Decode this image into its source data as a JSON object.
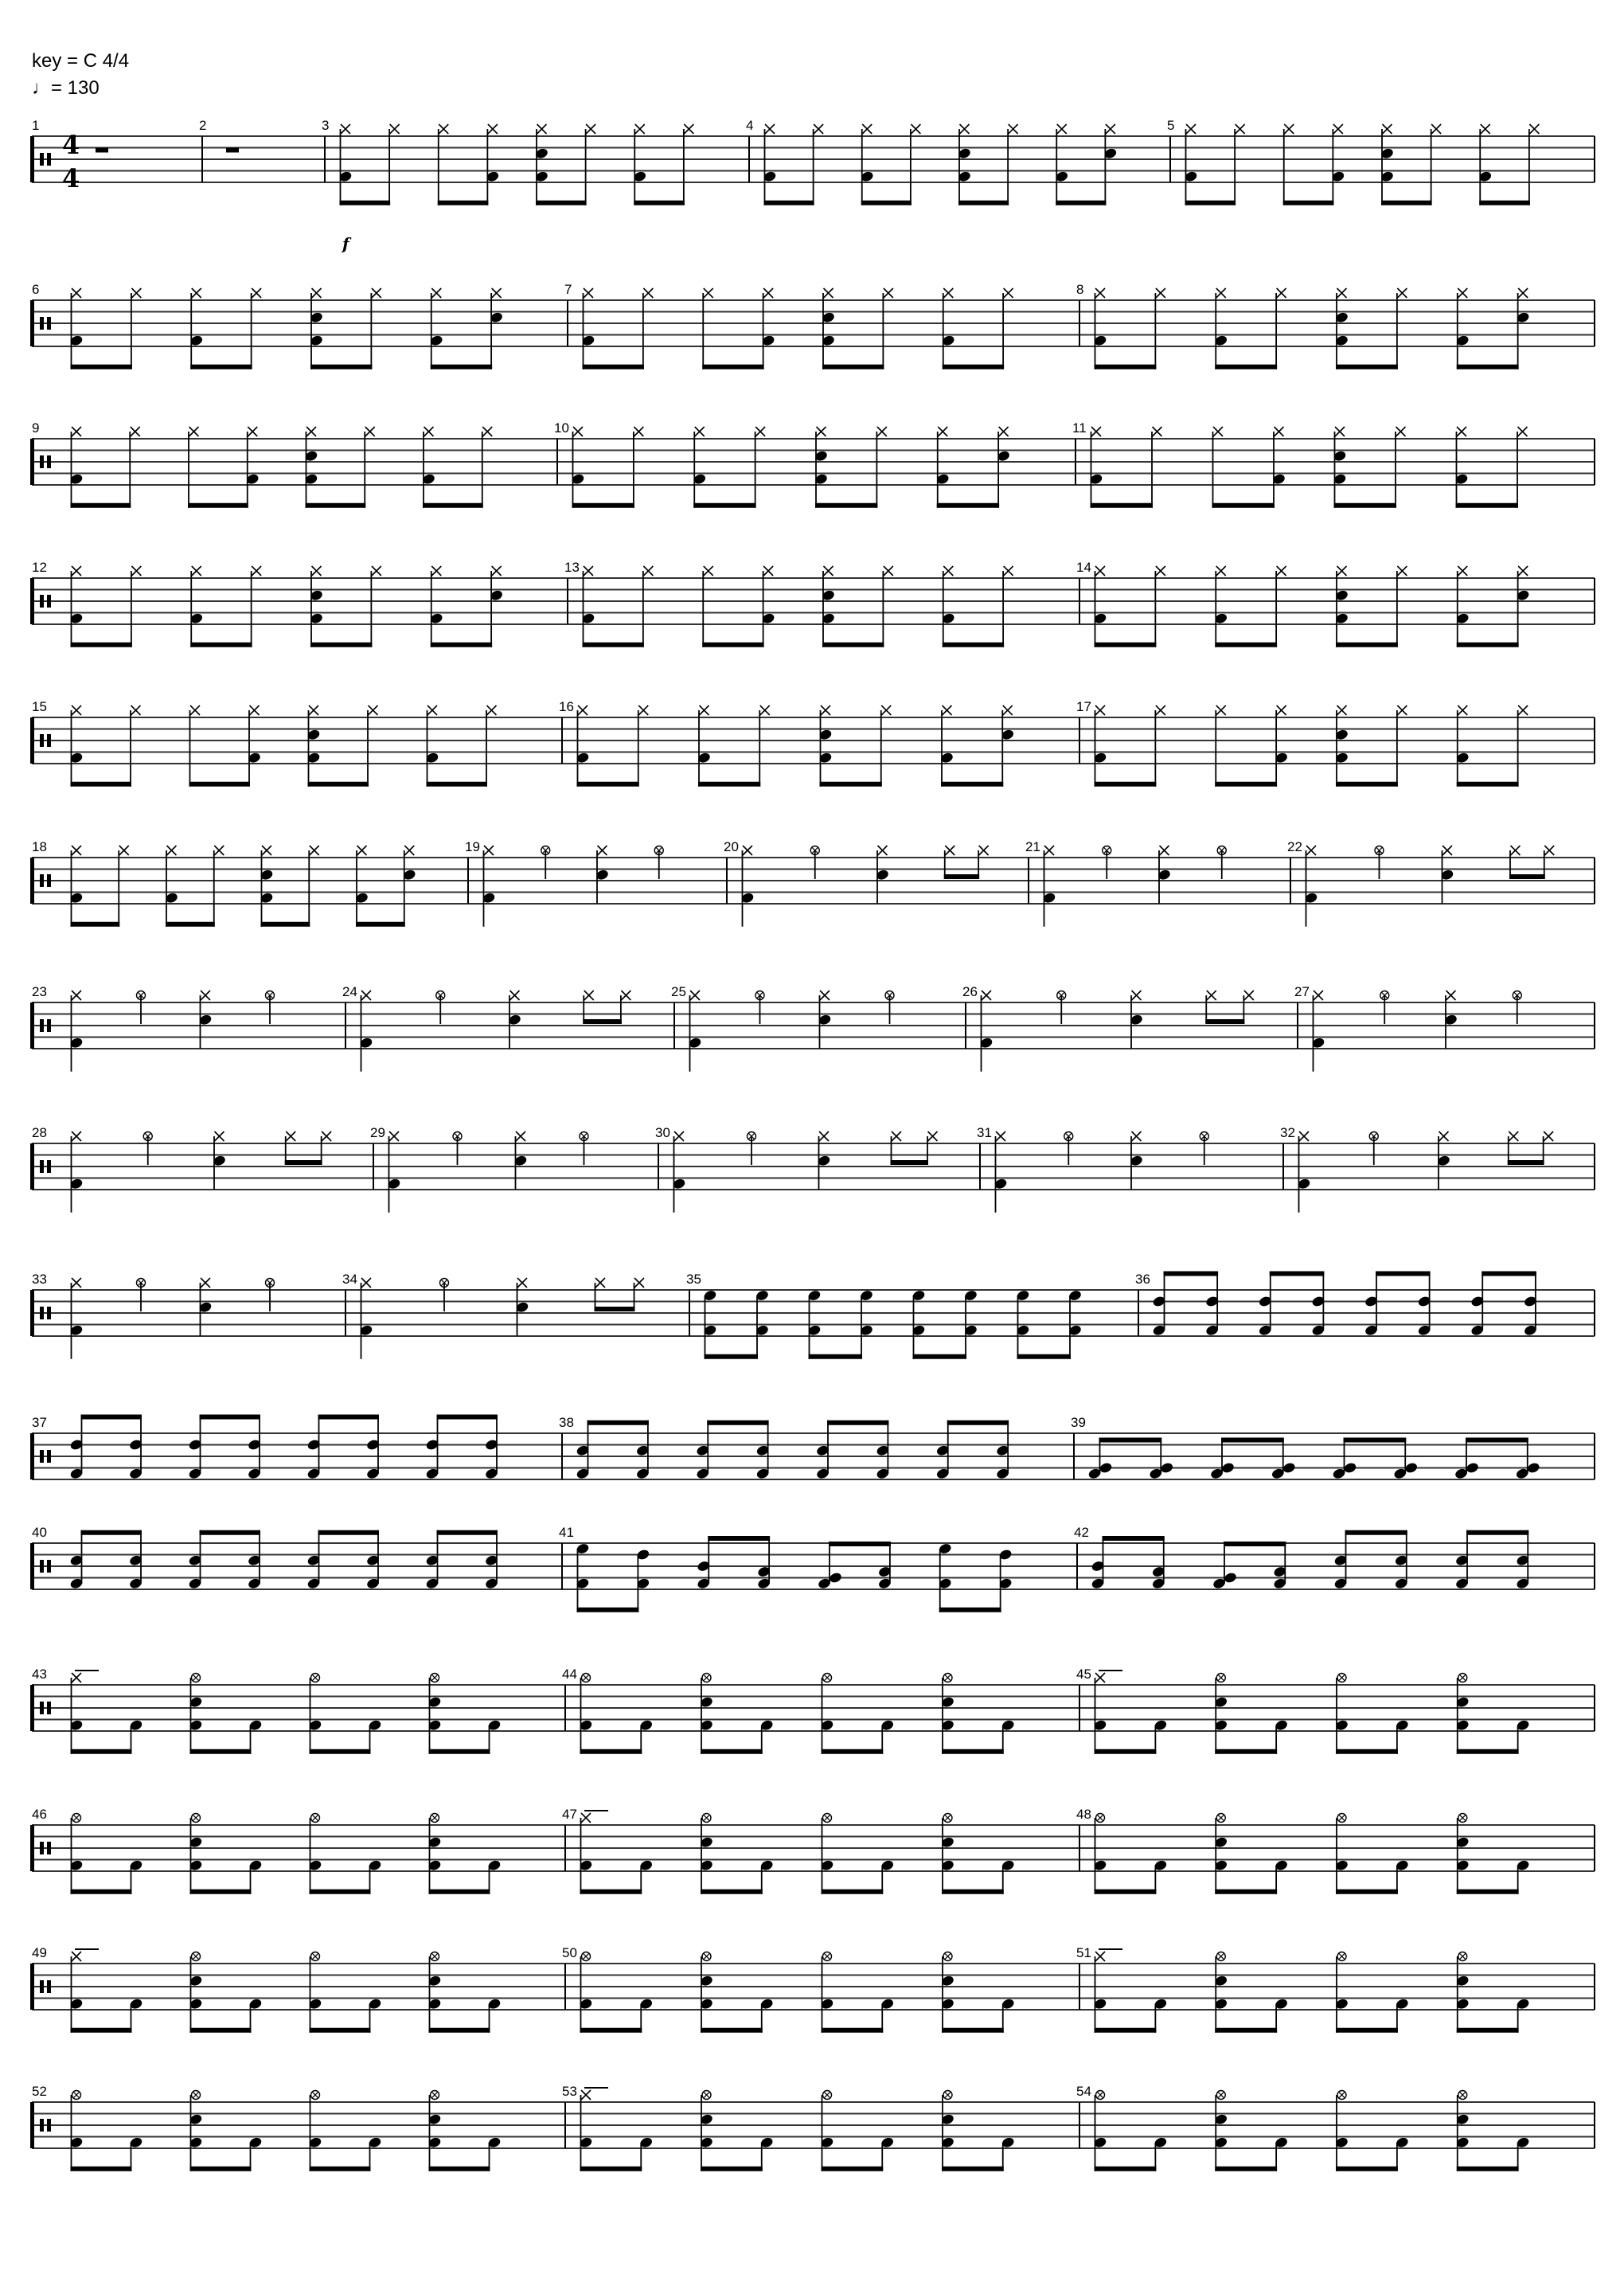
{
  "header": {
    "key_text": "key = C 4/4",
    "tempo_text": "♩= 130"
  },
  "time_signature": {
    "numerator": "4",
    "denominator": "4"
  },
  "dynamic": {
    "measure": 3,
    "text": "f"
  },
  "colors": {
    "ink": "#000000",
    "staff_line": "#333333",
    "background": "#ffffff"
  },
  "patterns": {
    "rest": {
      "rest": true
    },
    "A": {
      "dirs": [
        "down",
        "down",
        "down",
        "down"
      ],
      "events": [
        [
          "H",
          "K"
        ],
        [
          "H"
        ],
        [
          "H"
        ],
        [
          "H",
          "K"
        ],
        [
          "H",
          "S",
          "K"
        ],
        [
          "H"
        ],
        [
          "H",
          "K"
        ],
        [
          "H"
        ]
      ]
    },
    "B": {
      "dirs": [
        "down",
        "down",
        "down",
        "down"
      ],
      "events": [
        [
          "H",
          "K"
        ],
        [
          "H"
        ],
        [
          "H",
          "K"
        ],
        [
          "H"
        ],
        [
          "H",
          "S",
          "K"
        ],
        [
          "H"
        ],
        [
          "H",
          "K"
        ],
        [
          "H",
          "S"
        ]
      ]
    },
    "C": {
      "quarters": [
        0,
        2,
        4,
        6
      ],
      "events": [
        [
          "H",
          "K"
        ],
        null,
        [
          "C"
        ],
        null,
        [
          "H",
          "S"
        ],
        null,
        [
          "C"
        ],
        null
      ]
    },
    "D": {
      "quarters": [
        0,
        2,
        4
      ],
      "dirs": [
        null,
        null,
        null,
        "down"
      ],
      "events": [
        [
          "H",
          "K"
        ],
        null,
        [
          "C"
        ],
        null,
        [
          "H",
          "S"
        ],
        null,
        [
          "H"
        ],
        [
          "H"
        ]
      ]
    },
    "E": {
      "dirs": [
        "down",
        "down",
        "down",
        "down"
      ],
      "events": [
        [
          "T1",
          "K"
        ],
        [
          "T1",
          "K"
        ],
        [
          "T1",
          "K"
        ],
        [
          "T1",
          "K"
        ],
        [
          "T1",
          "K"
        ],
        [
          "T1",
          "K"
        ],
        [
          "T1",
          "K"
        ],
        [
          "T1",
          "K"
        ]
      ]
    },
    "F": {
      "dirs": [
        "up",
        "up",
        "up",
        "up"
      ],
      "events": [
        [
          "T2",
          "K"
        ],
        [
          "T2",
          "K"
        ],
        [
          "T2",
          "K"
        ],
        [
          "T2",
          "K"
        ],
        [
          "T2",
          "K"
        ],
        [
          "T2",
          "K"
        ],
        [
          "T2",
          "K"
        ],
        [
          "T2",
          "K"
        ]
      ]
    },
    "G": {
      "dirs": [
        "up",
        "up",
        "up",
        "up"
      ],
      "events": [
        [
          "S",
          "K"
        ],
        [
          "S",
          "K"
        ],
        [
          "S",
          "K"
        ],
        [
          "S",
          "K"
        ],
        [
          "S",
          "K"
        ],
        [
          "S",
          "K"
        ],
        [
          "S",
          "K"
        ],
        [
          "S",
          "K"
        ]
      ]
    },
    "H": {
      "dirs": [
        "up",
        "up",
        "up",
        "up"
      ],
      "events": [
        [
          "T3",
          "K"
        ],
        [
          "T3",
          "K"
        ],
        [
          "T3",
          "K"
        ],
        [
          "T3",
          "K"
        ],
        [
          "T3",
          "K"
        ],
        [
          "T3",
          "K"
        ],
        [
          "T3",
          "K"
        ],
        [
          "T3",
          "K"
        ]
      ]
    },
    "M41": {
      "dirs": [
        "down",
        "up",
        "up",
        "down"
      ],
      "events": [
        [
          "T1",
          "K"
        ],
        [
          "T2",
          "K"
        ],
        [
          "S2",
          "K"
        ],
        [
          "T4",
          "K"
        ],
        [
          "T3",
          "K"
        ],
        [
          "T4",
          "K"
        ],
        [
          "T1",
          "K"
        ],
        [
          "T2",
          "K"
        ]
      ]
    },
    "M42": {
      "dirs": [
        "up",
        "up",
        "up",
        "up"
      ],
      "events": [
        [
          "S2",
          "K"
        ],
        [
          "T4",
          "K"
        ],
        [
          "T3",
          "K"
        ],
        [
          "T4",
          "K"
        ],
        [
          "S",
          "K"
        ],
        [
          "S",
          "K"
        ],
        [
          "S",
          "K"
        ],
        [
          "S",
          "K"
        ]
      ]
    },
    "I": {
      "dirs": [
        "down",
        "down",
        "down",
        "down"
      ],
      "events": [
        [
          "CR",
          "K"
        ],
        [
          "K"
        ],
        [
          "C",
          "S",
          "K"
        ],
        [
          "K"
        ],
        [
          "C",
          "K"
        ],
        [
          "K"
        ],
        [
          "C",
          "S",
          "K"
        ],
        [
          "K"
        ]
      ]
    },
    "J": {
      "dirs": [
        "down",
        "down",
        "down",
        "down"
      ],
      "events": [
        [
          "C",
          "K"
        ],
        [
          "K"
        ],
        [
          "C",
          "S",
          "K"
        ],
        [
          "K"
        ],
        [
          "C",
          "K"
        ],
        [
          "K"
        ],
        [
          "C",
          "S",
          "K"
        ],
        [
          "K"
        ]
      ]
    }
  },
  "systems": [
    {
      "measures": [
        {
          "number": "1",
          "pattern": "rest"
        },
        {
          "number": "2",
          "pattern": "rest"
        },
        {
          "number": "3",
          "pattern": "A"
        },
        {
          "number": "4",
          "pattern": "B"
        },
        {
          "number": "5",
          "pattern": "A"
        }
      ]
    },
    {
      "measures": [
        {
          "number": "6",
          "pattern": "B"
        },
        {
          "number": "7",
          "pattern": "A"
        },
        {
          "number": "8",
          "pattern": "B"
        }
      ]
    },
    {
      "measures": [
        {
          "number": "9",
          "pattern": "A"
        },
        {
          "number": "10",
          "pattern": "B"
        },
        {
          "number": "11",
          "pattern": "A"
        }
      ]
    },
    {
      "measures": [
        {
          "number": "12",
          "pattern": "B"
        },
        {
          "number": "13",
          "pattern": "A"
        },
        {
          "number": "14",
          "pattern": "B"
        }
      ]
    },
    {
      "measures": [
        {
          "number": "15",
          "pattern": "A"
        },
        {
          "number": "16",
          "pattern": "B"
        },
        {
          "number": "17",
          "pattern": "A"
        }
      ]
    },
    {
      "measures": [
        {
          "number": "18",
          "pattern": "B"
        },
        {
          "number": "19",
          "pattern": "C"
        },
        {
          "number": "20",
          "pattern": "D"
        },
        {
          "number": "21",
          "pattern": "C"
        },
        {
          "number": "22",
          "pattern": "D"
        }
      ]
    },
    {
      "measures": [
        {
          "number": "23",
          "pattern": "C"
        },
        {
          "number": "24",
          "pattern": "D"
        },
        {
          "number": "25",
          "pattern": "C"
        },
        {
          "number": "26",
          "pattern": "D"
        },
        {
          "number": "27",
          "pattern": "C"
        }
      ]
    },
    {
      "measures": [
        {
          "number": "28",
          "pattern": "D"
        },
        {
          "number": "29",
          "pattern": "C"
        },
        {
          "number": "30",
          "pattern": "D"
        },
        {
          "number": "31",
          "pattern": "C"
        },
        {
          "number": "32",
          "pattern": "D"
        }
      ]
    },
    {
      "measures": [
        {
          "number": "33",
          "pattern": "C"
        },
        {
          "number": "34",
          "pattern": "D"
        },
        {
          "number": "35",
          "pattern": "E"
        },
        {
          "number": "36",
          "pattern": "F"
        }
      ]
    },
    {
      "measures": [
        {
          "number": "37",
          "pattern": "F"
        },
        {
          "number": "38",
          "pattern": "G"
        },
        {
          "number": "39",
          "pattern": "H"
        }
      ]
    },
    {
      "measures": [
        {
          "number": "40",
          "pattern": "G"
        },
        {
          "number": "41",
          "pattern": "M41"
        },
        {
          "number": "42",
          "pattern": "M42"
        }
      ]
    },
    {
      "measures": [
        {
          "number": "43",
          "pattern": "I"
        },
        {
          "number": "44",
          "pattern": "J"
        },
        {
          "number": "45",
          "pattern": "I"
        }
      ]
    },
    {
      "measures": [
        {
          "number": "46",
          "pattern": "J"
        },
        {
          "number": "47",
          "pattern": "I"
        },
        {
          "number": "48",
          "pattern": "J"
        }
      ]
    },
    {
      "measures": [
        {
          "number": "49",
          "pattern": "I"
        },
        {
          "number": "50",
          "pattern": "J"
        },
        {
          "number": "51",
          "pattern": "I"
        }
      ]
    },
    {
      "measures": [
        {
          "number": "52",
          "pattern": "J"
        },
        {
          "number": "53",
          "pattern": "I"
        },
        {
          "number": "54",
          "pattern": "J"
        }
      ]
    }
  ]
}
